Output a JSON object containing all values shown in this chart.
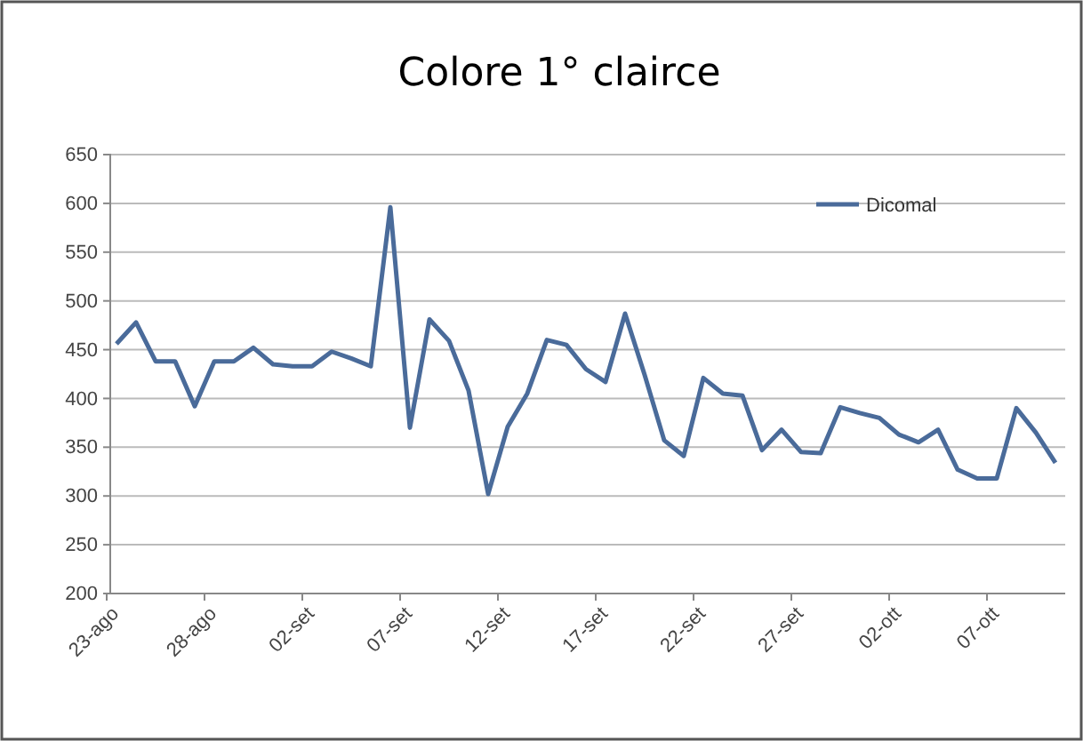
{
  "chart_data": {
    "type": "line",
    "title": "Colore 1° clairce",
    "categories": [
      "23-ago",
      null,
      null,
      null,
      null,
      "28-ago",
      null,
      null,
      null,
      null,
      "02-set",
      null,
      null,
      null,
      null,
      "07-set",
      null,
      null,
      null,
      null,
      "12-set",
      null,
      null,
      null,
      null,
      "17-set",
      null,
      null,
      null,
      null,
      "22-set",
      null,
      null,
      null,
      null,
      "27-set",
      null,
      null,
      null,
      null,
      "02-ott",
      null,
      null,
      null,
      null,
      "07-ott",
      null,
      null,
      null
    ],
    "series": [
      {
        "name": "Dicomal",
        "color": "#4a6b9a",
        "values": [
          456,
          478,
          438,
          438,
          392,
          438,
          438,
          452,
          435,
          433,
          433,
          448,
          441,
          433,
          596,
          370,
          481,
          459,
          408,
          302,
          371,
          405,
          460,
          455,
          430,
          417,
          487,
          424,
          357,
          341,
          421,
          405,
          403,
          347,
          368,
          345,
          344,
          391,
          385,
          380,
          363,
          355,
          368,
          327,
          318,
          318,
          390,
          365,
          334
        ]
      }
    ],
    "ylim": [
      200,
      650
    ],
    "yticks": [
      200,
      250,
      300,
      350,
      400,
      450,
      500,
      550,
      600,
      650
    ],
    "grid": "y",
    "legend": "top right",
    "marker": "none",
    "line_style": "solid"
  }
}
